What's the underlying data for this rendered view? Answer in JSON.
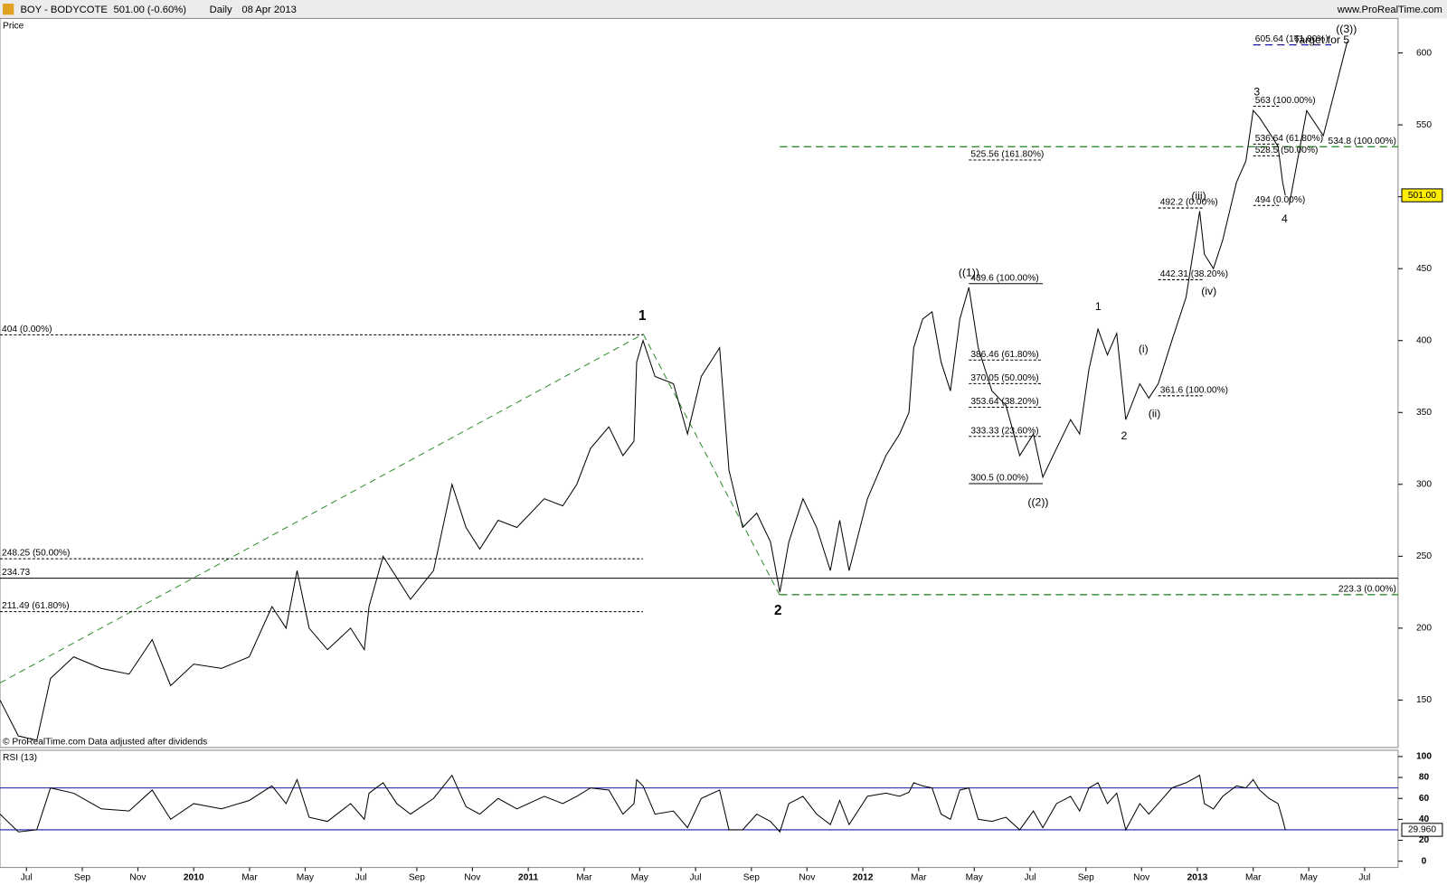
{
  "header": {
    "symbol": "BOY - BODYCOTE",
    "quote": "501.00 (-0.60%)",
    "period": "Daily",
    "date": "08 Apr 2013",
    "site": "www.ProRealTime.com",
    "price_label": "Price",
    "footer": "© ProRealTime.com  Data adjusted after dividends"
  },
  "chart_data": [
    {
      "type": "line",
      "title": "Price",
      "color": "#000000",
      "x": [
        2009.421,
        2009.476,
        2009.531,
        2009.572,
        2009.641,
        2009.724,
        2009.807,
        2009.876,
        2009.931,
        2010.0,
        2010.083,
        2010.166,
        2010.234,
        2010.276,
        2010.309,
        2010.345,
        2010.4,
        2010.469,
        2010.51,
        2010.524,
        2010.566,
        2010.607,
        2010.648,
        2010.717,
        2010.772,
        2010.814,
        2010.855,
        2010.91,
        2010.966,
        2011.048,
        2011.103,
        2011.145,
        2011.186,
        2011.241,
        2011.283,
        2011.316,
        2011.324,
        2011.343,
        2011.379,
        2011.434,
        2011.476,
        2011.517,
        2011.572,
        2011.6,
        2011.641,
        2011.683,
        2011.724,
        2011.752,
        2011.779,
        2011.821,
        2011.862,
        2011.903,
        2011.931,
        2011.959,
        2012.014,
        2012.069,
        2012.11,
        2012.138,
        2012.152,
        2012.179,
        2012.207,
        2012.234,
        2012.262,
        2012.29,
        2012.317,
        2012.345,
        2012.386,
        2012.428,
        2012.469,
        2012.51,
        2012.538,
        2012.579,
        2012.621,
        2012.648,
        2012.676,
        2012.703,
        2012.731,
        2012.759,
        2012.786,
        2012.828,
        2012.855,
        2012.883,
        2012.924,
        2012.966,
        2013.007,
        2013.021,
        2013.048,
        2013.076,
        2013.117,
        2013.145,
        2013.167,
        2013.186,
        2013.214,
        2013.241,
        2013.255,
        2013.263
      ],
      "values": [
        150,
        125,
        122,
        165,
        180,
        172,
        168,
        192,
        160,
        175,
        172,
        180,
        215,
        200,
        240,
        200,
        185,
        200,
        185,
        215,
        250,
        235,
        220,
        240,
        300,
        270,
        255,
        275,
        270,
        290,
        285,
        300,
        325,
        340,
        320,
        330,
        385,
        400,
        375,
        370,
        335,
        375,
        395,
        310,
        270,
        280,
        260,
        225,
        260,
        290,
        270,
        240,
        275,
        240,
        290,
        320,
        335,
        350,
        395,
        415,
        420,
        385,
        365,
        415,
        437,
        395,
        365,
        355,
        320,
        335,
        305,
        325,
        345,
        335,
        380,
        408,
        390,
        405,
        345,
        370,
        360,
        370,
        400,
        430,
        490,
        460,
        450,
        470,
        510,
        525,
        560,
        555,
        545,
        535,
        510,
        501
      ],
      "xlim": [
        2009.421,
        2013.6
      ],
      "ylim": [
        117,
        624
      ],
      "xticks": [
        {
          "value": 2009.5,
          "label": "Jul"
        },
        {
          "value": 2009.667,
          "label": "Sep"
        },
        {
          "value": 2009.833,
          "label": "Nov"
        },
        2010,
        {
          "value": 2010.167,
          "label": "Mar"
        },
        {
          "value": 2010.333,
          "label": "May"
        },
        {
          "value": 2010.5,
          "label": "Jul"
        },
        {
          "value": 2010.667,
          "label": "Sep"
        },
        {
          "value": 2010.833,
          "label": "Nov"
        },
        2011,
        {
          "value": 2011.167,
          "label": "Mar"
        },
        {
          "value": 2011.333,
          "label": "May"
        },
        {
          "value": 2011.5,
          "label": "Jul"
        },
        {
          "value": 2011.667,
          "label": "Sep"
        },
        {
          "value": 2011.833,
          "label": "Nov"
        },
        2012,
        {
          "value": 2012.167,
          "label": "Mar"
        },
        {
          "value": 2012.333,
          "label": "May"
        },
        {
          "value": 2012.5,
          "label": "Jul"
        },
        {
          "value": 2012.667,
          "label": "Sep"
        },
        {
          "value": 2012.833,
          "label": "Nov"
        },
        2013,
        {
          "value": 2013.167,
          "label": "Mar"
        },
        {
          "value": 2013.333,
          "label": "May"
        },
        {
          "value": 2013.5,
          "label": "Jul"
        }
      ],
      "yticks": [
        150,
        200,
        250,
        300,
        350,
        400,
        450,
        500,
        550,
        600
      ],
      "last_value": {
        "value": 501,
        "label": "501.00"
      },
      "levels": [
        {
          "value": 404,
          "label": "404 (0.00%)",
          "from": 2009.421,
          "to": 2011.343,
          "color": "#000000",
          "dash": true,
          "label_at": "start"
        },
        {
          "value": 248.25,
          "label": "248.25 (50.00%)",
          "from": 2009.421,
          "to": 2011.343,
          "color": "#000000",
          "dash": true,
          "label_at": "start"
        },
        {
          "value": 211.49,
          "label": "211.49 (61.80%)",
          "from": 2009.421,
          "to": 2011.343,
          "color": "#000000",
          "dash": true,
          "label_at": "start"
        },
        {
          "value": 234.73,
          "label": "234.73",
          "from": 2009.421,
          "to": 2013.6,
          "color": "#000000",
          "dash": false,
          "label_at": "start"
        },
        {
          "value": 223.3,
          "label": "223.3 (0.00%)",
          "from": 2011.752,
          "to": 2013.6,
          "color": "#2e8b2e",
          "dash": true,
          "label_at": "end"
        },
        {
          "value": 534.8,
          "label": "534.8 (100.00%)",
          "from": 2011.752,
          "to": 2013.6,
          "color": "#2e8b2e",
          "dash": true,
          "label_at": "end"
        },
        {
          "value": 525.56,
          "label": "525.56 (161.80%)",
          "from": 2012.317,
          "to": 2012.538,
          "color": "#000000",
          "dash": true,
          "label_at": "start"
        },
        {
          "value": 439.6,
          "label": "439.6 (100.00%)",
          "from": 2012.317,
          "to": 2012.538,
          "color": "#000000",
          "dash": false,
          "label_at": "start"
        },
        {
          "value": 386.46,
          "label": "386.46 (61.80%)",
          "from": 2012.317,
          "to": 2012.538,
          "color": "#000000",
          "dash": true,
          "label_at": "start"
        },
        {
          "value": 370.05,
          "label": "370.05 (50.00%)",
          "from": 2012.317,
          "to": 2012.538,
          "color": "#000000",
          "dash": true,
          "label_at": "start"
        },
        {
          "value": 353.64,
          "label": "353.64 (38.20%)",
          "from": 2012.317,
          "to": 2012.538,
          "color": "#000000",
          "dash": true,
          "label_at": "start"
        },
        {
          "value": 333.33,
          "label": "333.33 (23.60%)",
          "from": 2012.317,
          "to": 2012.538,
          "color": "#000000",
          "dash": true,
          "label_at": "start"
        },
        {
          "value": 300.5,
          "label": "300.5 (0.00%)",
          "from": 2012.317,
          "to": 2012.538,
          "color": "#000000",
          "dash": false,
          "label_at": "start"
        },
        {
          "value": 492.2,
          "label": "492.2 (0.00%)",
          "from": 2012.883,
          "to": 2013.021,
          "color": "#000000",
          "dash": true,
          "label_at": "start"
        },
        {
          "value": 442.31,
          "label": "442.31 (38.20%)",
          "from": 2012.883,
          "to": 2013.021,
          "color": "#000000",
          "dash": true,
          "label_at": "start"
        },
        {
          "value": 361.6,
          "label": "361.6 (100.00%)",
          "from": 2012.883,
          "to": 2013.021,
          "color": "#000000",
          "dash": true,
          "label_at": "start"
        },
        {
          "value": 605.64,
          "label": "605.64 (161.80%)",
          "from": 2013.167,
          "to": 2013.4,
          "color": "#1a1aa6",
          "dash": true,
          "label_at": "start"
        },
        {
          "value": 563,
          "label": "563 (100.00%)",
          "from": 2013.167,
          "to": 2013.25,
          "color": "#000000",
          "dash": true,
          "label_at": "start"
        },
        {
          "value": 536.64,
          "label": "536.64 (61.80%)",
          "from": 2013.167,
          "to": 2013.25,
          "color": "#000000",
          "dash": true,
          "label_at": "start"
        },
        {
          "value": 528.5,
          "label": "528.5 (50.00%)",
          "from": 2013.167,
          "to": 2013.25,
          "color": "#000000",
          "dash": true,
          "label_at": "start"
        },
        {
          "value": 494,
          "label": "494 (0.00%)",
          "from": 2013.167,
          "to": 2013.25,
          "color": "#000000",
          "dash": true,
          "label_at": "start"
        }
      ],
      "wave_labels": [
        "1",
        "2",
        "((1))",
        "((2))",
        "1",
        "2",
        "(i)",
        "(ii)",
        "(iii)",
        "(iv)",
        "3",
        "4",
        "((3))"
      ],
      "target": "Target for 5"
    },
    {
      "type": "line",
      "title": "RSI (13)",
      "color": "#000000",
      "x": [
        2009.421,
        2009.476,
        2009.531,
        2009.572,
        2009.641,
        2009.724,
        2009.807,
        2009.876,
        2009.931,
        2010.0,
        2010.083,
        2010.166,
        2010.234,
        2010.276,
        2010.309,
        2010.345,
        2010.4,
        2010.469,
        2010.51,
        2010.524,
        2010.566,
        2010.607,
        2010.648,
        2010.717,
        2010.772,
        2010.814,
        2010.855,
        2010.91,
        2010.966,
        2011.048,
        2011.103,
        2011.145,
        2011.186,
        2011.241,
        2011.283,
        2011.316,
        2011.324,
        2011.343,
        2011.379,
        2011.434,
        2011.476,
        2011.517,
        2011.572,
        2011.6,
        2011.641,
        2011.683,
        2011.724,
        2011.752,
        2011.779,
        2011.821,
        2011.862,
        2011.903,
        2011.931,
        2011.959,
        2012.014,
        2012.069,
        2012.11,
        2012.138,
        2012.152,
        2012.179,
        2012.207,
        2012.234,
        2012.262,
        2012.29,
        2012.317,
        2012.345,
        2012.386,
        2012.428,
        2012.469,
        2012.51,
        2012.538,
        2012.579,
        2012.621,
        2012.648,
        2012.676,
        2012.703,
        2012.731,
        2012.759,
        2012.786,
        2012.828,
        2012.855,
        2012.883,
        2012.924,
        2012.966,
        2013.007,
        2013.021,
        2013.048,
        2013.076,
        2013.117,
        2013.145,
        2013.167,
        2013.186,
        2013.214,
        2013.241,
        2013.255,
        2013.263
      ],
      "values": [
        45,
        28,
        30,
        70,
        65,
        50,
        48,
        68,
        40,
        55,
        50,
        58,
        72,
        55,
        78,
        42,
        38,
        55,
        40,
        65,
        75,
        55,
        45,
        60,
        82,
        52,
        45,
        60,
        50,
        62,
        55,
        62,
        70,
        68,
        45,
        55,
        78,
        72,
        45,
        48,
        32,
        60,
        68,
        30,
        30,
        45,
        38,
        28,
        55,
        62,
        45,
        35,
        58,
        35,
        62,
        65,
        62,
        66,
        75,
        72,
        70,
        45,
        40,
        68,
        70,
        40,
        38,
        42,
        30,
        48,
        32,
        55,
        62,
        48,
        70,
        75,
        55,
        65,
        30,
        55,
        45,
        55,
        70,
        75,
        82,
        55,
        50,
        62,
        72,
        70,
        78,
        68,
        60,
        55,
        40,
        29.96
      ],
      "xlim": [
        2009.421,
        2013.6
      ],
      "ylim": [
        -6,
        106
      ],
      "yticks": [
        0,
        20,
        40,
        60,
        80,
        100
      ],
      "levels": [
        70,
        30
      ],
      "level_color": "#1a1aa6",
      "last_value": {
        "value": 29.96,
        "label": "29.960"
      }
    }
  ]
}
